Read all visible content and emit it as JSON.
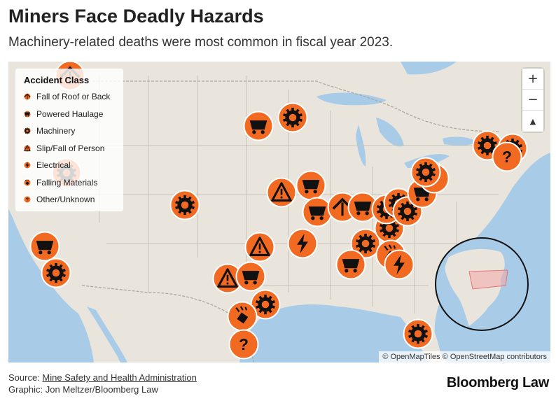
{
  "title": "Miners Face Deadly Hazards",
  "subtitle": "Machinery-related deaths were most common in fiscal year 2023.",
  "colors": {
    "marker": "#f26a21",
    "water": "#a8cbe8",
    "land": "#e9e5dc",
    "border": "#c9c2b5",
    "inset_highlight": "#f4a7a7"
  },
  "legend": {
    "title": "Accident Class",
    "items": [
      {
        "label": "Fall of Roof or Back",
        "icon": "roof-fall-icon"
      },
      {
        "label": "Powered Haulage",
        "icon": "mine-cart-icon"
      },
      {
        "label": "Machinery",
        "icon": "gear-icon"
      },
      {
        "label": "Slip/Fall of Person",
        "icon": "warning-triangle-icon"
      },
      {
        "label": "Electrical",
        "icon": "lightning-icon"
      },
      {
        "label": "Falling Materials",
        "icon": "falling-materials-icon"
      },
      {
        "label": "Other/Unknown",
        "icon": "question-icon"
      }
    ]
  },
  "zoom": {
    "in_label": "+",
    "out_label": "−",
    "reset_label": "▲"
  },
  "attribution": "© OpenMapTiles © OpenStreetMap contributors",
  "footer": {
    "source_prefix": "Source: ",
    "source_link": "Mine Safety and Health Administration",
    "graphic": "Graphic: Jon Meltzer/Bloomberg Law",
    "brand": "Bloomberg Law"
  }
}
